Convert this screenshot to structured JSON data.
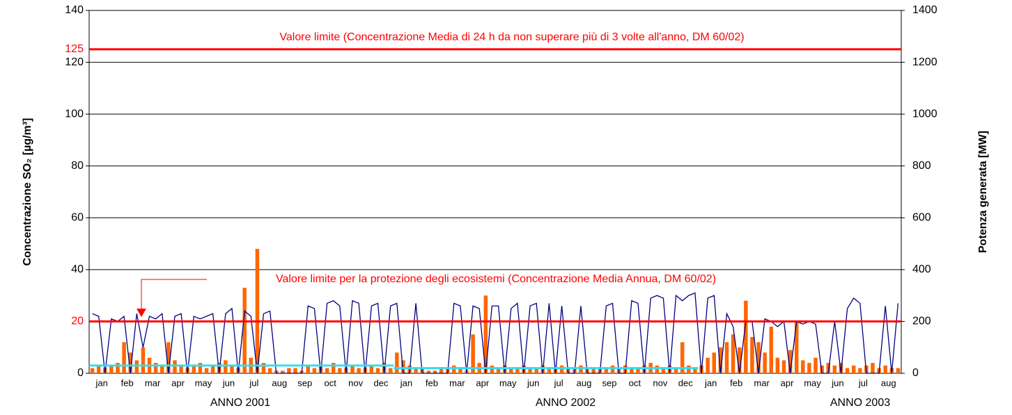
{
  "chart_data": {
    "type": "bar",
    "ylabel": "Concentrazione SO₂ [µg/m³]",
    "y2label": "Potenza generata [MW]",
    "categories": [
      "jan",
      null,
      null,
      null,
      "feb",
      null,
      null,
      null,
      "mar",
      null,
      null,
      null,
      "apr",
      null,
      null,
      null,
      "may",
      null,
      null,
      null,
      "jun",
      null,
      null,
      null,
      "jul",
      null,
      null,
      null,
      "aug",
      null,
      null,
      null,
      "sep",
      null,
      null,
      null,
      "oct",
      null,
      null,
      null,
      "nov",
      null,
      null,
      null,
      "dec",
      null,
      null,
      null,
      "jan",
      null,
      null,
      null,
      "feb",
      null,
      null,
      null,
      "mar",
      null,
      null,
      null,
      "apr",
      null,
      null,
      null,
      "may",
      null,
      null,
      null,
      "jun",
      null,
      null,
      null,
      "jul",
      null,
      null,
      null,
      "aug",
      null,
      null,
      null,
      "sep",
      null,
      null,
      null,
      "oct",
      null,
      null,
      null,
      "nov",
      null,
      null,
      null,
      "dec",
      null,
      null,
      null,
      "jan",
      null,
      null,
      null,
      "feb",
      null,
      null,
      null,
      "mar",
      null,
      null,
      null,
      "apr",
      null,
      null,
      null,
      "may",
      null,
      null,
      null,
      "jun",
      null,
      null,
      null,
      "jul",
      null,
      null,
      null,
      "aug",
      null,
      null,
      null
    ],
    "series": [
      {
        "type": "bar",
        "axis": "y",
        "color": "#ff6600",
        "values": [
          2,
          3,
          2,
          3,
          4,
          12,
          8,
          5,
          10,
          6,
          4,
          3,
          12,
          5,
          3,
          2,
          3,
          4,
          2,
          3,
          4,
          5,
          3,
          2,
          33,
          6,
          48,
          4,
          2,
          1,
          1,
          2,
          2,
          1,
          3,
          2,
          3,
          2,
          4,
          2,
          2,
          3,
          2,
          2,
          3,
          2,
          4,
          2,
          8,
          5,
          3,
          2,
          2,
          1,
          1,
          2,
          2,
          3,
          2,
          1,
          15,
          4,
          30,
          3,
          2,
          3,
          2,
          2,
          3,
          2,
          2,
          3,
          2,
          2,
          3,
          2,
          2,
          3,
          2,
          2,
          2,
          2,
          3,
          2,
          3,
          2,
          2,
          3,
          4,
          3,
          2,
          3,
          2,
          12,
          3,
          2,
          3,
          6,
          8,
          10,
          12,
          15,
          10,
          28,
          14,
          12,
          8,
          18,
          6,
          5,
          9,
          20,
          5,
          4,
          6,
          3,
          4,
          3,
          4,
          2,
          3,
          2,
          3,
          4,
          2,
          3,
          2,
          2
        ]
      },
      {
        "type": "line",
        "axis": "y2",
        "color": "#000080",
        "values": [
          230,
          220,
          0,
          210,
          200,
          220,
          0,
          230,
          100,
          220,
          210,
          230,
          0,
          220,
          230,
          0,
          220,
          210,
          220,
          230,
          0,
          230,
          250,
          0,
          240,
          220,
          0,
          230,
          240,
          0,
          0,
          0,
          0,
          0,
          260,
          250,
          0,
          270,
          280,
          260,
          0,
          280,
          270,
          0,
          260,
          270,
          0,
          260,
          270,
          0,
          0,
          270,
          0,
          0,
          0,
          0,
          0,
          270,
          260,
          0,
          260,
          250,
          0,
          260,
          260,
          0,
          250,
          270,
          0,
          260,
          270,
          0,
          270,
          0,
          260,
          0,
          0,
          260,
          0,
          0,
          0,
          260,
          270,
          0,
          0,
          280,
          270,
          0,
          290,
          300,
          290,
          0,
          300,
          280,
          300,
          310,
          0,
          290,
          300,
          0,
          230,
          180,
          0,
          200,
          200,
          0,
          210,
          200,
          180,
          200,
          0,
          200,
          190,
          200,
          190,
          0,
          0,
          200,
          0,
          250,
          290,
          270,
          0,
          0,
          0,
          260,
          0,
          270
        ]
      },
      {
        "type": "step",
        "axis": "y",
        "color": "#33ddee",
        "values": [
          3,
          3,
          3,
          3,
          3,
          3,
          3,
          3,
          3,
          3,
          3,
          3,
          3,
          3,
          3,
          3,
          3,
          3,
          3,
          3,
          3,
          3,
          3,
          3,
          3,
          3,
          3,
          3,
          3,
          3,
          3,
          3,
          3,
          3,
          3,
          3,
          3,
          3,
          3,
          3,
          3,
          3,
          3,
          3,
          3,
          3,
          3,
          3,
          2,
          2,
          2,
          2,
          2,
          2,
          2,
          2,
          2,
          2,
          2,
          2,
          2,
          2,
          2,
          2,
          2,
          2,
          2,
          2,
          2,
          2,
          2,
          2,
          2,
          2,
          2,
          2,
          2,
          2,
          2,
          2,
          2,
          2,
          2,
          2,
          2,
          2,
          2,
          2,
          2,
          2,
          2,
          2,
          2,
          2,
          2,
          2,
          null,
          null,
          null,
          null,
          null,
          null,
          null,
          null,
          null,
          null,
          null,
          null,
          null,
          null,
          null,
          null,
          null,
          null,
          null,
          null,
          null,
          null,
          null,
          null,
          null,
          null,
          null,
          null,
          null,
          null,
          null,
          null
        ]
      }
    ],
    "ylim": [
      0,
      140
    ],
    "yticks": [
      0,
      40,
      60,
      80,
      100,
      120,
      140
    ],
    "y2lim": [
      0,
      1400
    ],
    "y2ticks": [
      0,
      200,
      400,
      600,
      800,
      1000,
      1200,
      1400
    ],
    "grid": true,
    "hlines": [
      {
        "value": 125,
        "label": "125",
        "color": "#ff0000"
      },
      {
        "value": 20,
        "label": "20",
        "color": "#ff0000"
      }
    ],
    "annotations": [
      "Valore limite (Concentrazione Media di 24 h da non superare più di 3 volte all'anno, DM 60/02)",
      "Valore limite per la protezione degli ecosistemi (Concentrazione Media Annua, DM 60/02)",
      "ANNO 2001",
      "ANNO 2002",
      "ANNO 2003"
    ]
  }
}
